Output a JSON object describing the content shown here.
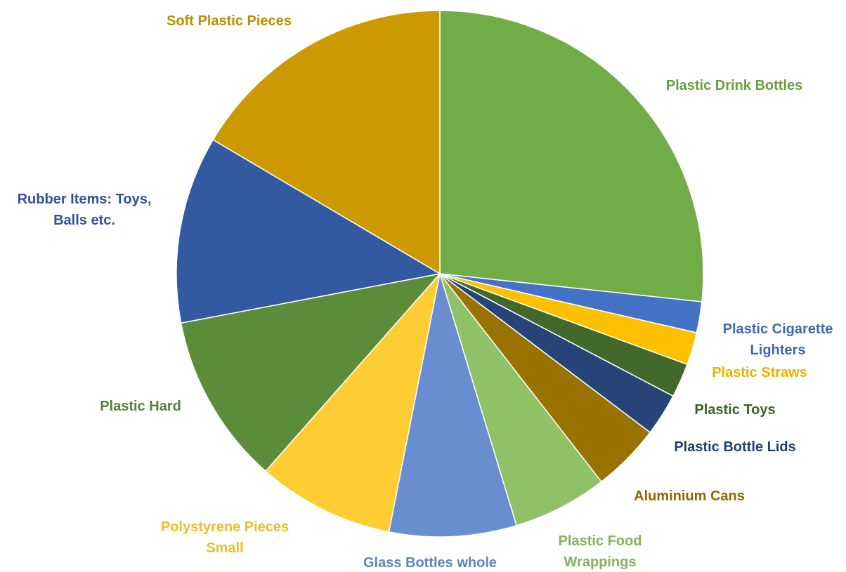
{
  "chart_data": {
    "type": "pie",
    "title": "",
    "start_angle_deg": 0,
    "direction": "clockwise",
    "legend": "none",
    "slices": [
      {
        "name": "plastic-drink-bottles",
        "label": "Plastic Drink Bottles",
        "value": 26.7,
        "color": "#70AD47"
      },
      {
        "name": "plastic-cigarette-lighters",
        "label": "Plastic Cigarette Lighters",
        "value": 1.9,
        "color": "#4472C4"
      },
      {
        "name": "plastic-straws",
        "label": "Plastic Straws",
        "value": 2.0,
        "color": "#FFC000"
      },
      {
        "name": "plastic-toys",
        "label": "Plastic Toys",
        "value": 2.1,
        "color": "#43682B"
      },
      {
        "name": "plastic-bottle-lids",
        "label": "Plastic Bottle Lids",
        "value": 2.6,
        "color": "#264478"
      },
      {
        "name": "aluminium-cans",
        "label": "Aluminium Cans",
        "value": 4.2,
        "color": "#997300"
      },
      {
        "name": "plastic-food-wrappings",
        "label": "Plastic Food Wrappings",
        "value": 5.8,
        "color": "#8FC166"
      },
      {
        "name": "glass-bottles-whole",
        "label": "Glass Bottles whole",
        "value": 7.8,
        "color": "#698ED0"
      },
      {
        "name": "polystyrene-pieces-small",
        "label": "Polystyrene Pieces Small",
        "value": 8.4,
        "color": "#FFCD33"
      },
      {
        "name": "plastic-hard",
        "label": "Plastic Hard",
        "value": 10.5,
        "color": "#5B8C3A"
      },
      {
        "name": "rubber-items",
        "label": "Rubber Items: Toys, Balls etc.",
        "value": 11.5,
        "color": "#335AA1"
      },
      {
        "name": "soft-plastic-pieces",
        "label": "Soft Plastic Pieces",
        "value": 16.5,
        "color": "#CC9A00"
      }
    ]
  }
}
